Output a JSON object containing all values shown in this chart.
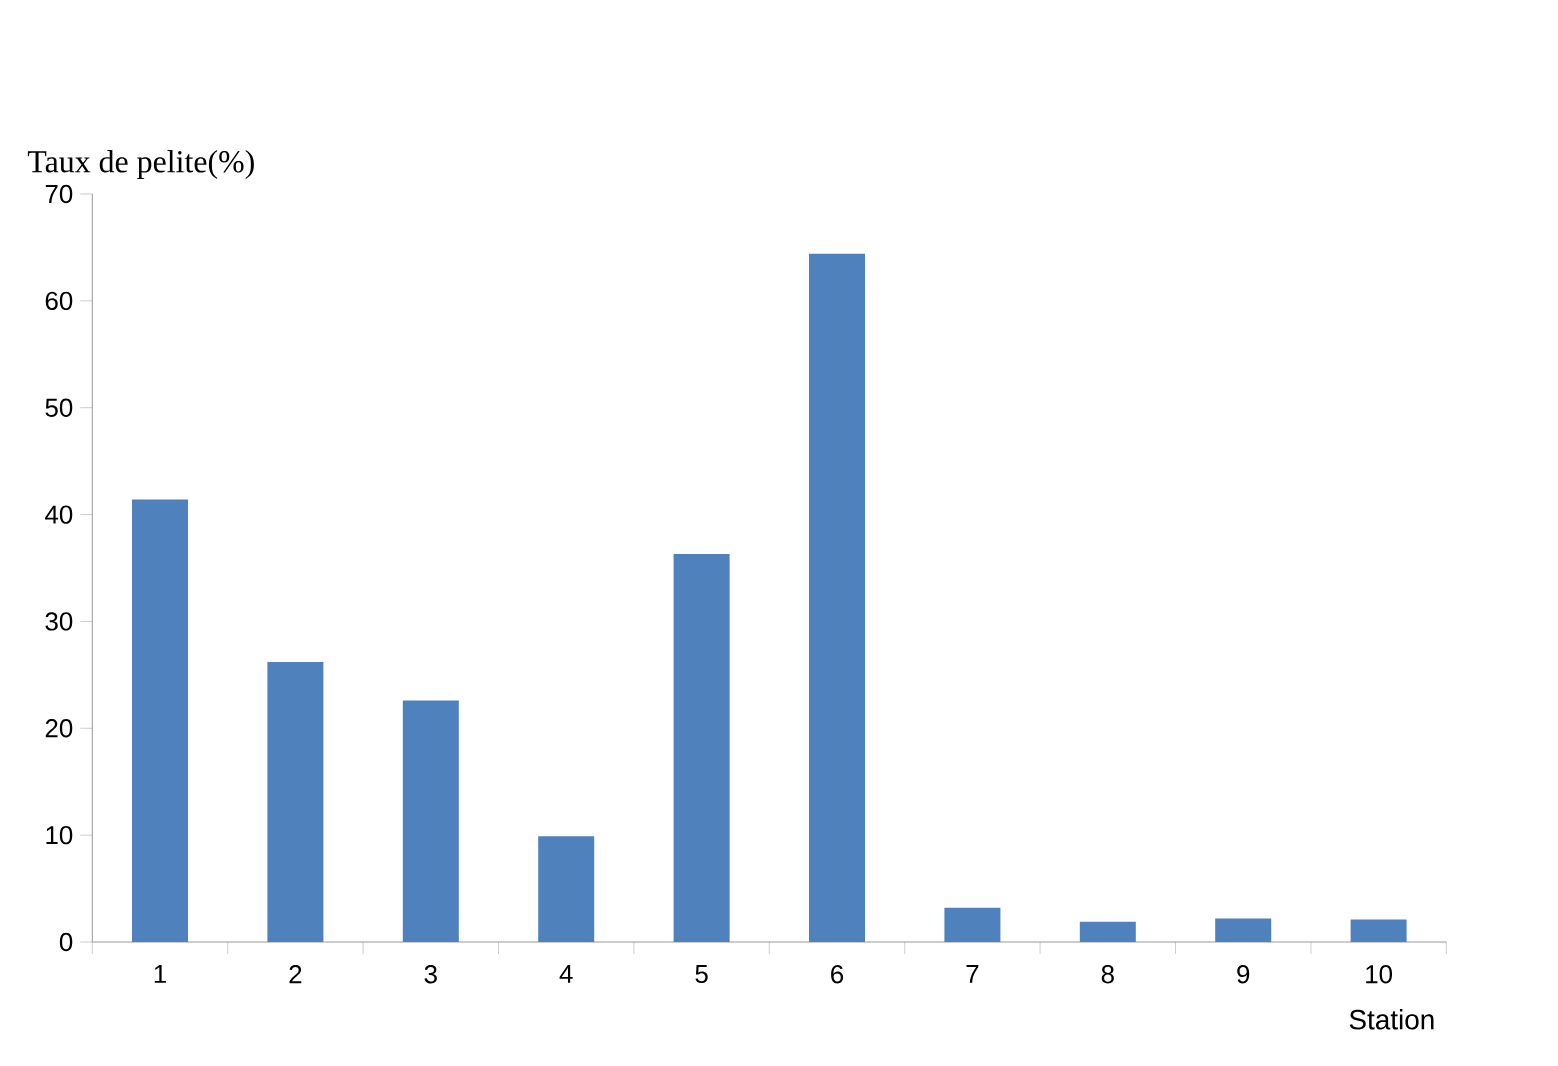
{
  "chart_data": {
    "type": "bar",
    "ylabel": "Taux de pelite(%)",
    "xlabel": "Station",
    "categories": [
      "1",
      "2",
      "3",
      "4",
      "5",
      "6",
      "7",
      "8",
      "9",
      "10"
    ],
    "values": [
      41.4,
      26.2,
      22.6,
      9.9,
      36.3,
      64.4,
      3.2,
      1.9,
      2.2,
      2.1
    ],
    "color": "#4f81bd",
    "ylim": [
      0,
      70
    ],
    "yticks": [
      0,
      10,
      20,
      30,
      40,
      50,
      60,
      70
    ]
  }
}
